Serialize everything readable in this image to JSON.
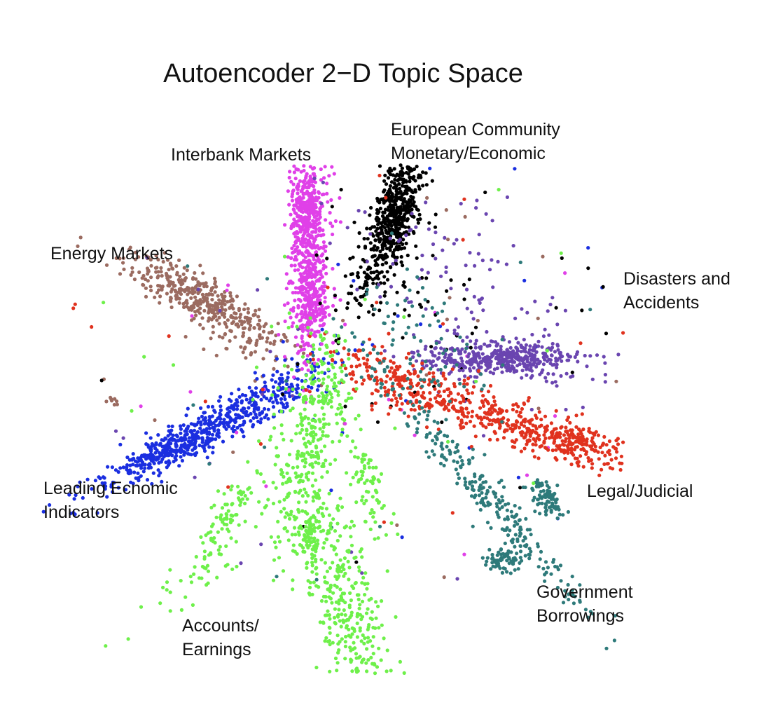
{
  "chart_data": {
    "type": "scatter",
    "title": "Autoencoder 2−D Topic Space",
    "xlabel": "",
    "ylabel": "",
    "grid": false,
    "axes": "none",
    "legend": "none",
    "series": [
      {
        "name": "European Community Monetary/Economic",
        "color": "#000000"
      },
      {
        "name": "Interbank Markets",
        "color": "#e040e8"
      },
      {
        "name": "Energy Markets",
        "color": "#9b6b60"
      },
      {
        "name": "Disasters and Accidents",
        "color": "#6a45b0"
      },
      {
        "name": "Leading Ecnomic Indicators",
        "color": "#1a2ee0"
      },
      {
        "name": "Legal/Judicial",
        "color": "#e0321e"
      },
      {
        "name": "Government Borrowings",
        "color": "#2e7a7a"
      },
      {
        "name": "Accounts/ Earnings",
        "color": "#6ef04a"
      }
    ],
    "annotations": [
      {
        "key": "ec",
        "lines": [
          "European Community",
          "Monetary/Economic"
        ]
      },
      {
        "key": "interbank",
        "lines": [
          "Interbank Markets"
        ]
      },
      {
        "key": "energy",
        "lines": [
          "Energy Markets"
        ]
      },
      {
        "key": "disasters",
        "lines": [
          "Disasters and",
          "Accidents"
        ]
      },
      {
        "key": "leading",
        "lines": [
          "Leading Ecnomic",
          "Indicators"
        ]
      },
      {
        "key": "legal",
        "lines": [
          "Legal/Judicial"
        ]
      },
      {
        "key": "gov",
        "lines": [
          "Government",
          "Borrowings"
        ]
      },
      {
        "key": "accounts",
        "lines": [
          "Accounts/",
          "Earnings"
        ]
      }
    ]
  }
}
